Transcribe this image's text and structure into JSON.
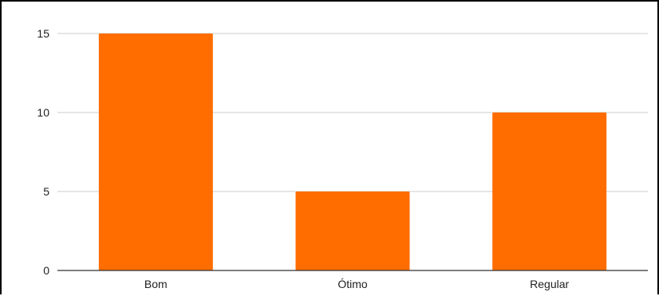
{
  "chart_data": {
    "type": "bar",
    "categories": [
      "Bom",
      "Ótimo",
      "Regular"
    ],
    "values": [
      15,
      5,
      10
    ],
    "title": "",
    "xlabel": "",
    "ylabel": "",
    "ylim": [
      0,
      15
    ],
    "yticks": [
      0,
      5,
      10,
      15
    ],
    "grid": true,
    "legend": "none",
    "bar_color": "#FF6D01",
    "gridline_color": "#cccccc",
    "axis_color": "#333333"
  }
}
